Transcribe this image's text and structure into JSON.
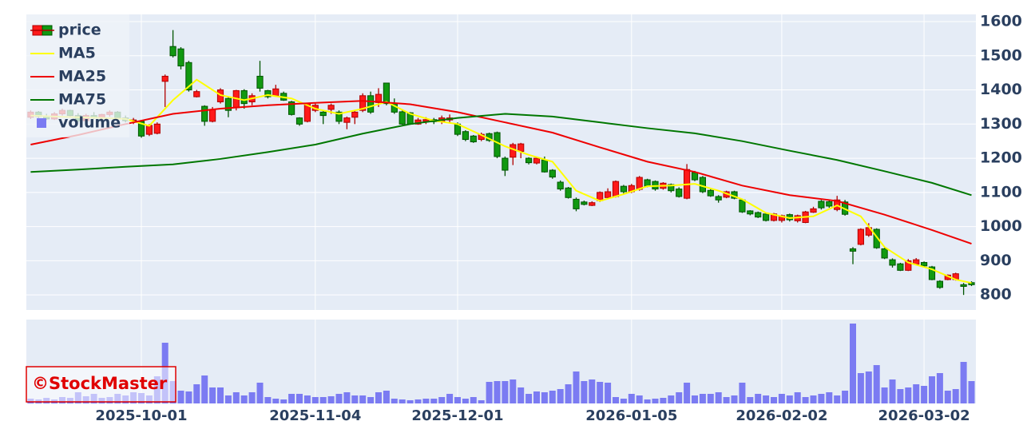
{
  "chart_data": {
    "type": "candlestick",
    "watermark": "©StockMaster",
    "legend": "top-left",
    "grid": true,
    "x": [
      "2025-09-09",
      "2025-09-10",
      "2025-09-11",
      "2025-09-12",
      "2025-09-16",
      "2025-09-17",
      "2025-09-18",
      "2025-09-19",
      "2025-09-22",
      "2025-09-24",
      "2025-09-25",
      "2025-09-26",
      "2025-09-29",
      "2025-09-30",
      "2025-10-01",
      "2025-10-02",
      "2025-10-03",
      "2025-10-06",
      "2025-10-07",
      "2025-10-08",
      "2025-10-09",
      "2025-10-10",
      "2025-10-14",
      "2025-10-15",
      "2025-10-16",
      "2025-10-17",
      "2025-10-20",
      "2025-10-21",
      "2025-10-22",
      "2025-10-23",
      "2025-10-24",
      "2025-10-27",
      "2025-10-28",
      "2025-10-29",
      "2025-10-30",
      "2025-10-31",
      "2025-11-04",
      "2025-11-05",
      "2025-11-06",
      "2025-11-07",
      "2025-11-10",
      "2025-11-11",
      "2025-11-12",
      "2025-11-13",
      "2025-11-14",
      "2025-11-17",
      "2025-11-18",
      "2025-11-19",
      "2025-11-20",
      "2025-11-21",
      "2025-11-25",
      "2025-11-26",
      "2025-11-27",
      "2025-11-28",
      "2025-12-01",
      "2025-12-02",
      "2025-12-03",
      "2025-12-04",
      "2025-12-05",
      "2025-12-08",
      "2025-12-09",
      "2025-12-10",
      "2025-12-11",
      "2025-12-12",
      "2025-12-15",
      "2025-12-16",
      "2025-12-17",
      "2025-12-18",
      "2025-12-19",
      "2025-12-22",
      "2025-12-23",
      "2025-12-24",
      "2025-12-25",
      "2025-12-26",
      "2025-12-29",
      "2025-12-30",
      "2026-01-05",
      "2026-01-06",
      "2026-01-07",
      "2026-01-08",
      "2026-01-09",
      "2026-01-13",
      "2026-01-14",
      "2026-01-15",
      "2026-01-16",
      "2026-01-19",
      "2026-01-20",
      "2026-01-21",
      "2026-01-22",
      "2026-01-23",
      "2026-01-26",
      "2026-01-27",
      "2026-01-28",
      "2026-01-29",
      "2026-01-30",
      "2026-02-02",
      "2026-02-03",
      "2026-02-04",
      "2026-02-05",
      "2026-02-06",
      "2026-02-09",
      "2026-02-10",
      "2026-02-12",
      "2026-02-13",
      "2026-02-16",
      "2026-02-17",
      "2026-02-18",
      "2026-02-19",
      "2026-02-20",
      "2026-02-24",
      "2026-02-25",
      "2026-02-26",
      "2026-02-27",
      "2026-03-02",
      "2026-03-03",
      "2026-03-04",
      "2026-03-05",
      "2026-03-06",
      "2026-03-09",
      "2026-03-10"
    ],
    "xticks": [
      "2025-10-01",
      "2025-11-04",
      "2025-12-01",
      "2026-01-05",
      "2026-02-02",
      "2026-03-02"
    ],
    "ylim": [
      756,
      1621
    ],
    "yticks": [
      800,
      900,
      1000,
      1100,
      1200,
      1300,
      1400,
      1500,
      1600
    ],
    "y2lim": [
      0,
      105
    ],
    "series": [
      {
        "name": "price",
        "type": "candlestick",
        "increasing_color": "#ff1a1a",
        "decreasing_color": "#119911",
        "open": [
          1320,
          1335,
          1322,
          1315,
          1330,
          1340,
          1325,
          1310,
          1325,
          1318,
          1328,
          1335,
          1318,
          1310,
          1308,
          1270,
          1273,
          1425,
          1527,
          1520,
          1480,
          1380,
          1352,
          1308,
          1365,
          1375,
          1348,
          1398,
          1365,
          1440,
          1398,
          1383,
          1390,
          1365,
          1318,
          1308,
          1340,
          1335,
          1343,
          1335,
          1305,
          1320,
          1340,
          1383,
          1363,
          1420,
          1360,
          1336,
          1333,
          1300,
          1308,
          1313,
          1307,
          1312,
          1300,
          1278,
          1265,
          1255,
          1272,
          1275,
          1200,
          1203,
          1220,
          1200,
          1186,
          1195,
          1165,
          1130,
          1113,
          1080,
          1072,
          1062,
          1076,
          1085,
          1088,
          1118,
          1102,
          1109,
          1137,
          1132,
          1112,
          1123,
          1110,
          1083,
          1158,
          1144,
          1106,
          1088,
          1086,
          1102,
          1078,
          1046,
          1041,
          1037,
          1018,
          1018,
          1035,
          1017,
          1012,
          1042,
          1074,
          1073,
          1050,
          1072,
          935,
          948,
          975,
          992,
          935,
          903,
          891,
          872,
          890,
          895,
          882,
          840,
          845,
          845,
          830,
          836
        ],
        "high": [
          1340,
          1338,
          1330,
          1335,
          1345,
          1342,
          1332,
          1330,
          1335,
          1330,
          1340,
          1338,
          1325,
          1318,
          1312,
          1300,
          1305,
          1445,
          1575,
          1525,
          1485,
          1400,
          1355,
          1350,
          1405,
          1380,
          1400,
          1402,
          1390,
          1485,
          1400,
          1415,
          1395,
          1368,
          1320,
          1362,
          1360,
          1338,
          1360,
          1340,
          1322,
          1340,
          1390,
          1395,
          1405,
          1420,
          1375,
          1340,
          1335,
          1318,
          1320,
          1318,
          1325,
          1328,
          1305,
          1282,
          1268,
          1275,
          1275,
          1278,
          1205,
          1245,
          1245,
          1203,
          1205,
          1205,
          1168,
          1135,
          1116,
          1085,
          1076,
          1074,
          1103,
          1112,
          1135,
          1122,
          1125,
          1148,
          1140,
          1135,
          1130,
          1126,
          1115,
          1183,
          1163,
          1148,
          1110,
          1092,
          1105,
          1105,
          1082,
          1048,
          1044,
          1040,
          1040,
          1035,
          1038,
          1035,
          1046,
          1058,
          1078,
          1078,
          1090,
          1078,
          940,
          995,
          1010,
          995,
          938,
          907,
          894,
          905,
          908,
          898,
          885,
          843,
          860,
          865,
          835,
          840
        ],
        "low": [
          1315,
          1318,
          1312,
          1312,
          1325,
          1322,
          1305,
          1305,
          1315,
          1312,
          1322,
          1315,
          1305,
          1300,
          1260,
          1265,
          1270,
          1350,
          1495,
          1460,
          1395,
          1378,
          1295,
          1305,
          1360,
          1320,
          1340,
          1345,
          1355,
          1395,
          1375,
          1380,
          1368,
          1325,
          1295,
          1305,
          1335,
          1300,
          1330,
          1300,
          1285,
          1300,
          1335,
          1330,
          1350,
          1355,
          1330,
          1298,
          1298,
          1298,
          1300,
          1300,
          1300,
          1305,
          1265,
          1250,
          1245,
          1250,
          1248,
          1200,
          1148,
          1180,
          1200,
          1182,
          1182,
          1158,
          1140,
          1105,
          1082,
          1045,
          1062,
          1060,
          1072,
          1080,
          1085,
          1095,
          1098,
          1105,
          1115,
          1105,
          1108,
          1100,
          1085,
          1080,
          1133,
          1098,
          1087,
          1070,
          1083,
          1080,
          1040,
          1033,
          1025,
          1015,
          1015,
          1012,
          1015,
          1012,
          1010,
          1040,
          1050,
          1055,
          1045,
          1032,
          890,
          945,
          970,
          935,
          905,
          880,
          870,
          870,
          887,
          880,
          843,
          818,
          843,
          842,
          800,
          826
        ],
        "close": [
          1335,
          1322,
          1315,
          1330,
          1340,
          1325,
          1310,
          1325,
          1318,
          1328,
          1335,
          1318,
          1310,
          1312,
          1265,
          1296,
          1300,
          1440,
          1500,
          1470,
          1400,
          1395,
          1308,
          1343,
          1400,
          1340,
          1398,
          1360,
          1383,
          1405,
          1380,
          1403,
          1370,
          1328,
          1300,
          1360,
          1355,
          1325,
          1355,
          1308,
          1318,
          1335,
          1383,
          1335,
          1387,
          1360,
          1335,
          1300,
          1300,
          1312,
          1313,
          1307,
          1318,
          1318,
          1270,
          1255,
          1248,
          1270,
          1252,
          1205,
          1165,
          1240,
          1242,
          1187,
          1200,
          1160,
          1145,
          1110,
          1085,
          1052,
          1065,
          1070,
          1100,
          1102,
          1132,
          1102,
          1120,
          1144,
          1118,
          1110,
          1127,
          1105,
          1088,
          1167,
          1137,
          1102,
          1090,
          1078,
          1102,
          1083,
          1043,
          1037,
          1028,
          1018,
          1037,
          1032,
          1020,
          1032,
          1043,
          1052,
          1055,
          1060,
          1078,
          1036,
          928,
          992,
          997,
          938,
          908,
          887,
          872,
          900,
          903,
          885,
          845,
          822,
          858,
          862,
          825,
          830
        ]
      },
      {
        "name": "MA5",
        "type": "line",
        "color": "#ffff00",
        "x": [
          "2025-09-09",
          "2025-09-12",
          "2025-09-18",
          "2025-09-24",
          "2025-09-29",
          "2025-10-02",
          "2025-10-07",
          "2025-10-10",
          "2025-10-16",
          "2025-10-21",
          "2025-10-24",
          "2025-10-29",
          "2025-11-04",
          "2025-11-07",
          "2025-11-12",
          "2025-11-17",
          "2025-11-20",
          "2025-11-26",
          "2025-12-01",
          "2025-12-04",
          "2025-12-09",
          "2025-12-12",
          "2025-12-17",
          "2025-12-22",
          "2025-12-25",
          "2025-12-30",
          "2026-01-07",
          "2026-01-13",
          "2026-01-16",
          "2026-01-21",
          "2026-01-26",
          "2026-01-29",
          "2026-02-03",
          "2026-02-06",
          "2026-02-12",
          "2026-02-17",
          "2026-02-20",
          "2026-02-26",
          "2026-03-03",
          "2026-03-06",
          "2026-03-10"
        ],
        "values": [
          1325,
          1322,
          1320,
          1318,
          1315,
          1295,
          1370,
          1430,
          1385,
          1370,
          1385,
          1375,
          1345,
          1330,
          1345,
          1365,
          1330,
          1310,
          1300,
          1268,
          1235,
          1210,
          1190,
          1105,
          1075,
          1095,
          1118,
          1120,
          1125,
          1105,
          1080,
          1040,
          1025,
          1030,
          1062,
          1030,
          940,
          895,
          875,
          845,
          835
        ]
      },
      {
        "name": "MA25",
        "type": "line",
        "color": "#ee0000",
        "x": [
          "2025-09-09",
          "2025-09-18",
          "2025-09-29",
          "2025-10-07",
          "2025-10-16",
          "2025-10-24",
          "2025-11-04",
          "2025-11-12",
          "2025-11-20",
          "2025-12-01",
          "2025-12-09",
          "2025-12-17",
          "2025-12-25",
          "2026-01-07",
          "2026-01-16",
          "2026-01-26",
          "2026-02-03",
          "2026-02-12",
          "2026-02-20",
          "2026-03-03",
          "2026-03-10"
        ],
        "values": [
          1240,
          1268,
          1300,
          1330,
          1345,
          1355,
          1362,
          1368,
          1358,
          1335,
          1305,
          1275,
          1232,
          1190,
          1160,
          1120,
          1092,
          1075,
          1035,
          990,
          950
        ]
      },
      {
        "name": "MA75",
        "type": "line",
        "color": "#007700",
        "x": [
          "2025-09-09",
          "2025-09-18",
          "2025-09-29",
          "2025-10-07",
          "2025-10-16",
          "2025-10-24",
          "2025-11-04",
          "2025-11-12",
          "2025-11-20",
          "2025-12-01",
          "2025-12-09",
          "2025-12-17",
          "2025-12-25",
          "2026-01-07",
          "2026-01-16",
          "2026-01-26",
          "2026-02-03",
          "2026-02-12",
          "2026-02-20",
          "2026-03-03",
          "2026-03-10"
        ],
        "values": [
          1160,
          1167,
          1175,
          1182,
          1198,
          1218,
          1240,
          1272,
          1300,
          1318,
          1330,
          1322,
          1305,
          1288,
          1273,
          1250,
          1222,
          1195,
          1162,
          1128,
          1092
        ]
      },
      {
        "name": "volume",
        "type": "bar",
        "axis": "y2",
        "color": "#7b7bf2",
        "values": [
          6,
          5,
          7,
          5,
          8,
          7,
          14,
          9,
          12,
          7,
          8,
          12,
          10,
          14,
          13,
          10,
          34,
          76,
          28,
          16,
          15,
          24,
          35,
          20,
          20,
          10,
          14,
          10,
          14,
          26,
          8,
          6,
          5,
          12,
          12,
          10,
          8,
          8,
          9,
          12,
          14,
          10,
          10,
          8,
          14,
          16,
          6,
          5,
          4,
          5,
          6,
          6,
          8,
          12,
          8,
          6,
          8,
          4,
          27,
          28,
          28,
          30,
          20,
          12,
          15,
          14,
          16,
          18,
          24,
          40,
          28,
          30,
          27,
          26,
          8,
          6,
          12,
          10,
          5,
          6,
          7,
          10,
          14,
          26,
          10,
          12,
          12,
          14,
          8,
          10,
          26,
          8,
          12,
          10,
          8,
          12,
          10,
          14,
          8,
          10,
          12,
          14,
          10,
          16,
          100,
          38,
          40,
          48,
          20,
          30,
          18,
          20,
          24,
          22,
          34,
          38,
          16,
          18,
          52,
          28
        ]
      }
    ]
  }
}
